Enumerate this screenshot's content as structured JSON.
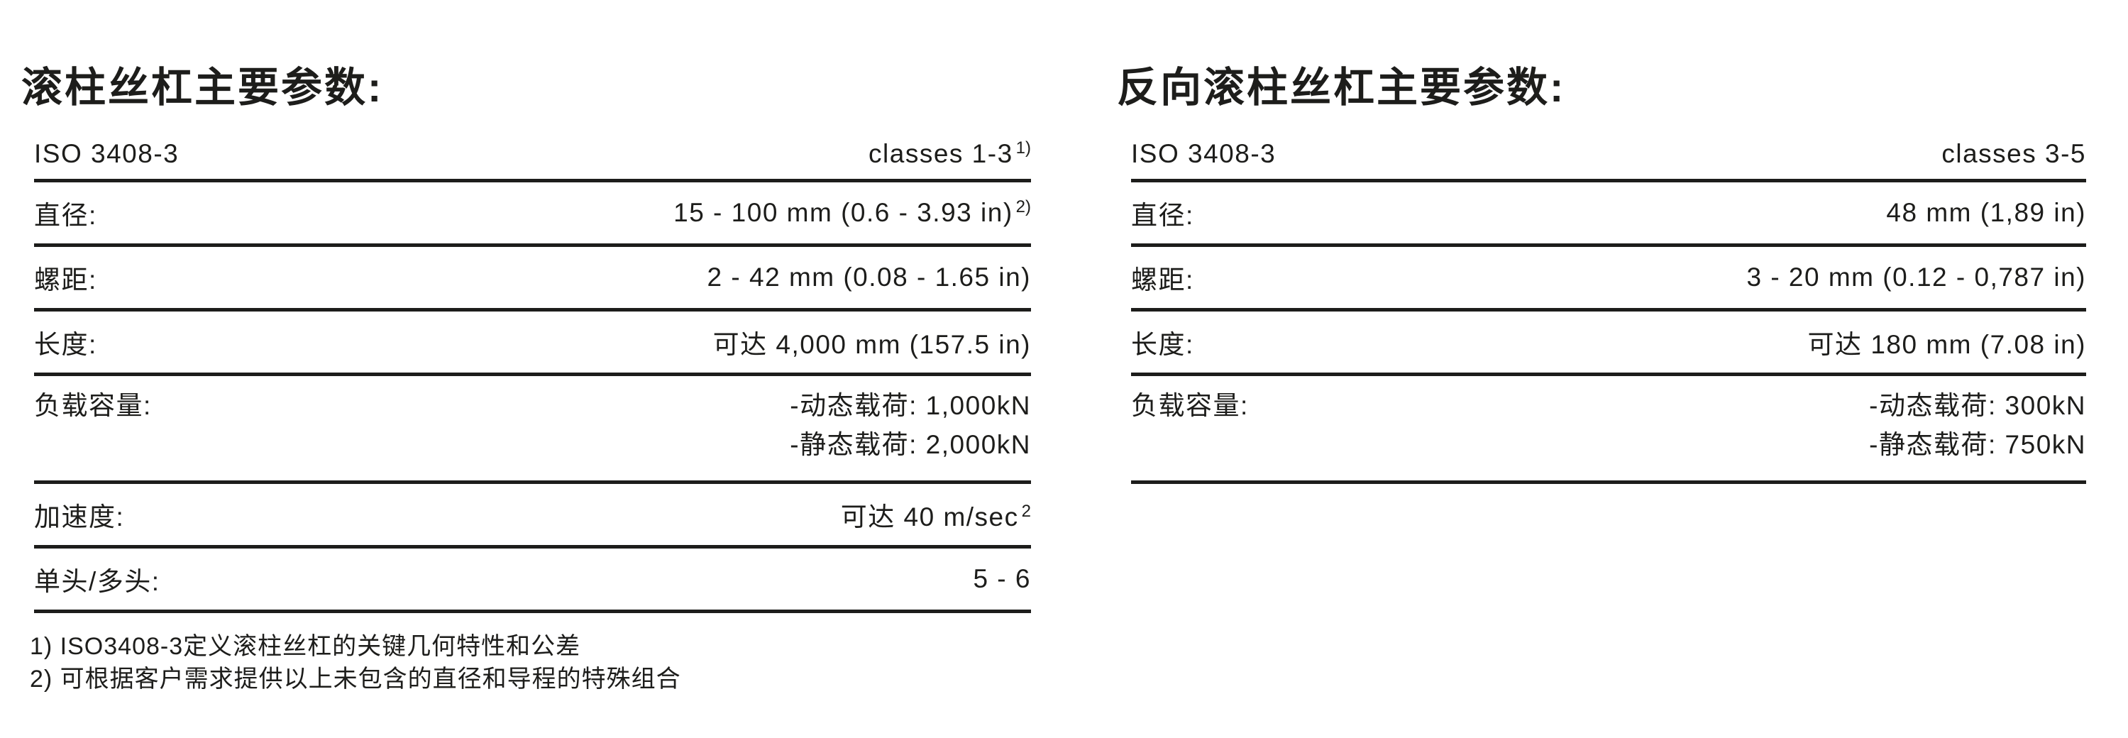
{
  "page": {
    "background": "#ffffff",
    "text_color": "#1d1d1b",
    "rule_color": "#1d1d1b"
  },
  "left_table": {
    "title": "滚柱丝杠主要参数:",
    "rows": [
      {
        "label": "ISO 3408-3",
        "value": "classes 1-3",
        "value_sup": "1)"
      },
      {
        "label": "直径:",
        "value": "15 - 100 mm (0.6 - 3.93 in)",
        "value_sup": "2)"
      },
      {
        "label": "螺距:",
        "value": "2 - 42 mm (0.08 - 1.65 in)"
      },
      {
        "label": "长度:",
        "value": "可达 4,000 mm (157.5 in)"
      },
      {
        "label": "负载容量:",
        "value_lines": [
          "-动态载荷: 1,000kN",
          "-静态载荷: 2,000kN"
        ]
      },
      {
        "label": "加速度:",
        "value": "可达 40 m/sec",
        "value_sup": "2"
      },
      {
        "label": "单头/多头:",
        "value": "5 - 6"
      }
    ],
    "footnotes": [
      "1) ISO3408-3定义滚柱丝杠的关键几何特性和公差",
      "2) 可根据客户需求提供以上未包含的直径和导程的特殊组合"
    ]
  },
  "right_table": {
    "title": "反向滚柱丝杠主要参数:",
    "rows": [
      {
        "label": "ISO 3408-3",
        "value": "classes 3-5"
      },
      {
        "label": "直径:",
        "value": "48 mm (1,89 in)"
      },
      {
        "label": "螺距:",
        "value": "3 - 20 mm (0.12 - 0,787 in)"
      },
      {
        "label": "长度:",
        "value": "可达 180 mm (7.08 in)"
      },
      {
        "label": "负载容量:",
        "value_lines": [
          "-动态载荷: 300kN",
          "-静态载荷: 750kN"
        ]
      }
    ]
  }
}
